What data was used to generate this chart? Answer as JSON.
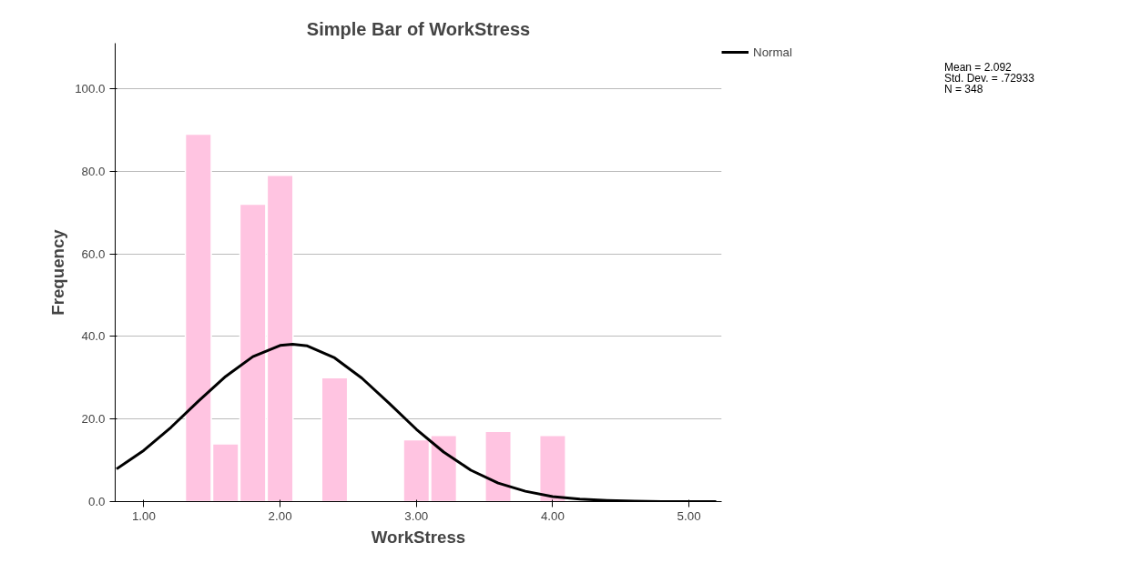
{
  "chart_data": {
    "type": "bar",
    "title": "Simple Bar of WorkStress",
    "xlabel": "WorkStress",
    "ylabel": "Frequency",
    "x": [
      1.4,
      1.6,
      1.8,
      2.0,
      2.4,
      3.0,
      3.2,
      3.6,
      4.0
    ],
    "series": [
      {
        "color": "#ffc4e1",
        "values": [
          89,
          14,
          72,
          79,
          30,
          15,
          16,
          17,
          16
        ]
      },
      {
        "type": "line",
        "name": "Normal",
        "color": "#000000",
        "x": [
          0.8,
          1.0,
          1.2,
          1.4,
          1.6,
          1.8,
          2.0,
          2.092,
          2.2,
          2.4,
          2.6,
          2.8,
          3.0,
          3.2,
          3.4,
          3.6,
          3.8,
          4.0,
          4.2,
          4.4,
          4.6,
          4.8,
          5.0,
          5.2
        ],
        "values": [
          7.9,
          12.4,
          18.0,
          24.3,
          30.3,
          35.1,
          37.8,
          38.1,
          37.7,
          34.8,
          29.9,
          23.8,
          17.5,
          12.0,
          7.6,
          4.5,
          2.5,
          1.2,
          0.6,
          0.3,
          0.1,
          0.0,
          0.0,
          0.0
        ]
      }
    ],
    "xlim": [
      0.79,
      5.24
    ],
    "ylim": [
      0,
      111
    ],
    "xticks": [
      {
        "value": 1,
        "label": "1.00"
      },
      {
        "value": 2,
        "label": "2.00"
      },
      {
        "value": 3,
        "label": "3.00"
      },
      {
        "value": 4,
        "label": "4.00"
      },
      {
        "value": 5,
        "label": "5.00"
      }
    ],
    "yticks": [
      {
        "value": 0,
        "label": "0.0"
      },
      {
        "value": 20,
        "label": "20.0"
      },
      {
        "value": 40,
        "label": "40.0"
      },
      {
        "value": 60,
        "label": "60.0"
      },
      {
        "value": 80,
        "label": "80.0"
      },
      {
        "value": 100,
        "label": "100.0"
      }
    ],
    "grid": "y",
    "legend": "top right",
    "annotations": [
      "Mean = 2.092",
      "Std. Dev. = .72933",
      "N = 348"
    ]
  }
}
